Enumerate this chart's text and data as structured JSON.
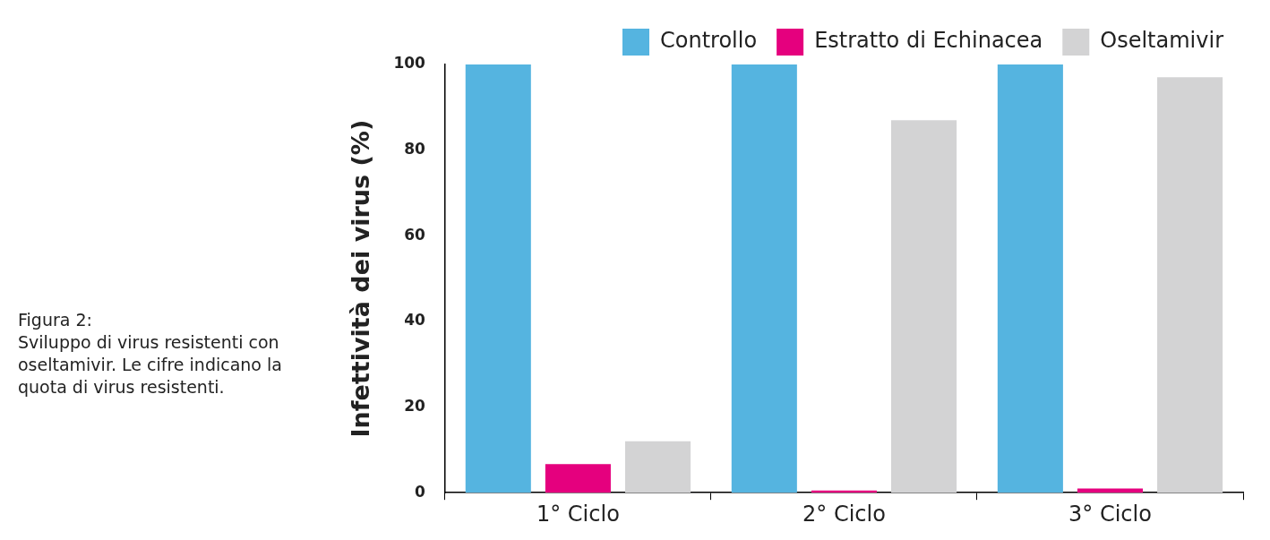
{
  "chart_data": {
    "type": "bar",
    "ylabel": "Infettività dei virus (%)",
    "categories": [
      "1° Ciclo",
      "2° Ciclo",
      "3° Ciclo"
    ],
    "series": [
      {
        "name": "Controllo",
        "color": "#55b4e0",
        "values": [
          100,
          100,
          100
        ]
      },
      {
        "name": "Estratto di Echinacea",
        "color": "#e5007e",
        "values": [
          6.7,
          0.5,
          1
        ]
      },
      {
        "name": "Oseltamivir",
        "color": "#d3d3d4",
        "values": [
          12,
          87,
          97
        ]
      }
    ],
    "ylim": [
      0,
      100
    ],
    "yticks": [
      0,
      20,
      40,
      60,
      80,
      100
    ],
    "grid": false,
    "legend": "top right",
    "annotations": [
      "Figura 2:",
      "Sviluppo di virus resistenti con oseltamivir. Le cifre indicano la quota di virus resistenti."
    ]
  }
}
